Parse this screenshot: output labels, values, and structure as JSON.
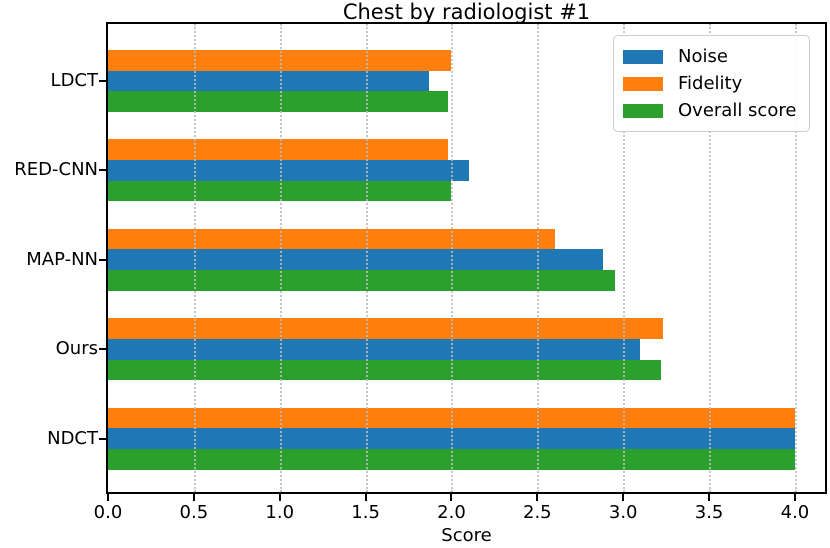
{
  "title": "Chest by radiologist #1",
  "chart_data": {
    "type": "bar",
    "orientation": "horizontal",
    "title": "Chest by radiologist #1",
    "xlabel": "Score",
    "categories": [
      "LDCT",
      "RED-CNN",
      "MAP-NN",
      "Ours",
      "NDCT"
    ],
    "series": [
      {
        "name": "Noise",
        "color": "#1f77b4",
        "values": [
          1.87,
          2.1,
          2.88,
          3.1,
          4.0
        ]
      },
      {
        "name": "Fidelity",
        "color": "#ff7f0e",
        "values": [
          2.0,
          1.98,
          2.6,
          3.23,
          4.0
        ]
      },
      {
        "name": "Overall score",
        "color": "#2ca02c",
        "values": [
          1.98,
          2.0,
          2.95,
          3.22,
          4.0
        ]
      }
    ],
    "bar_order_top_to_bottom": [
      "Fidelity",
      "Noise",
      "Overall score"
    ],
    "legend_entries": [
      "Noise",
      "Fidelity",
      "Overall score"
    ],
    "legend_position": "upper-right",
    "x_ticks": [
      "0.0",
      "0.5",
      "1.0",
      "1.5",
      "2.0",
      "2.5",
      "3.0",
      "3.5",
      "4.0"
    ],
    "x_tick_values": [
      0,
      0.5,
      1.0,
      1.5,
      2.0,
      2.5,
      3.0,
      3.5,
      4.0
    ],
    "xlim": [
      0,
      4.175
    ],
    "grid": "vertical-dotted"
  }
}
